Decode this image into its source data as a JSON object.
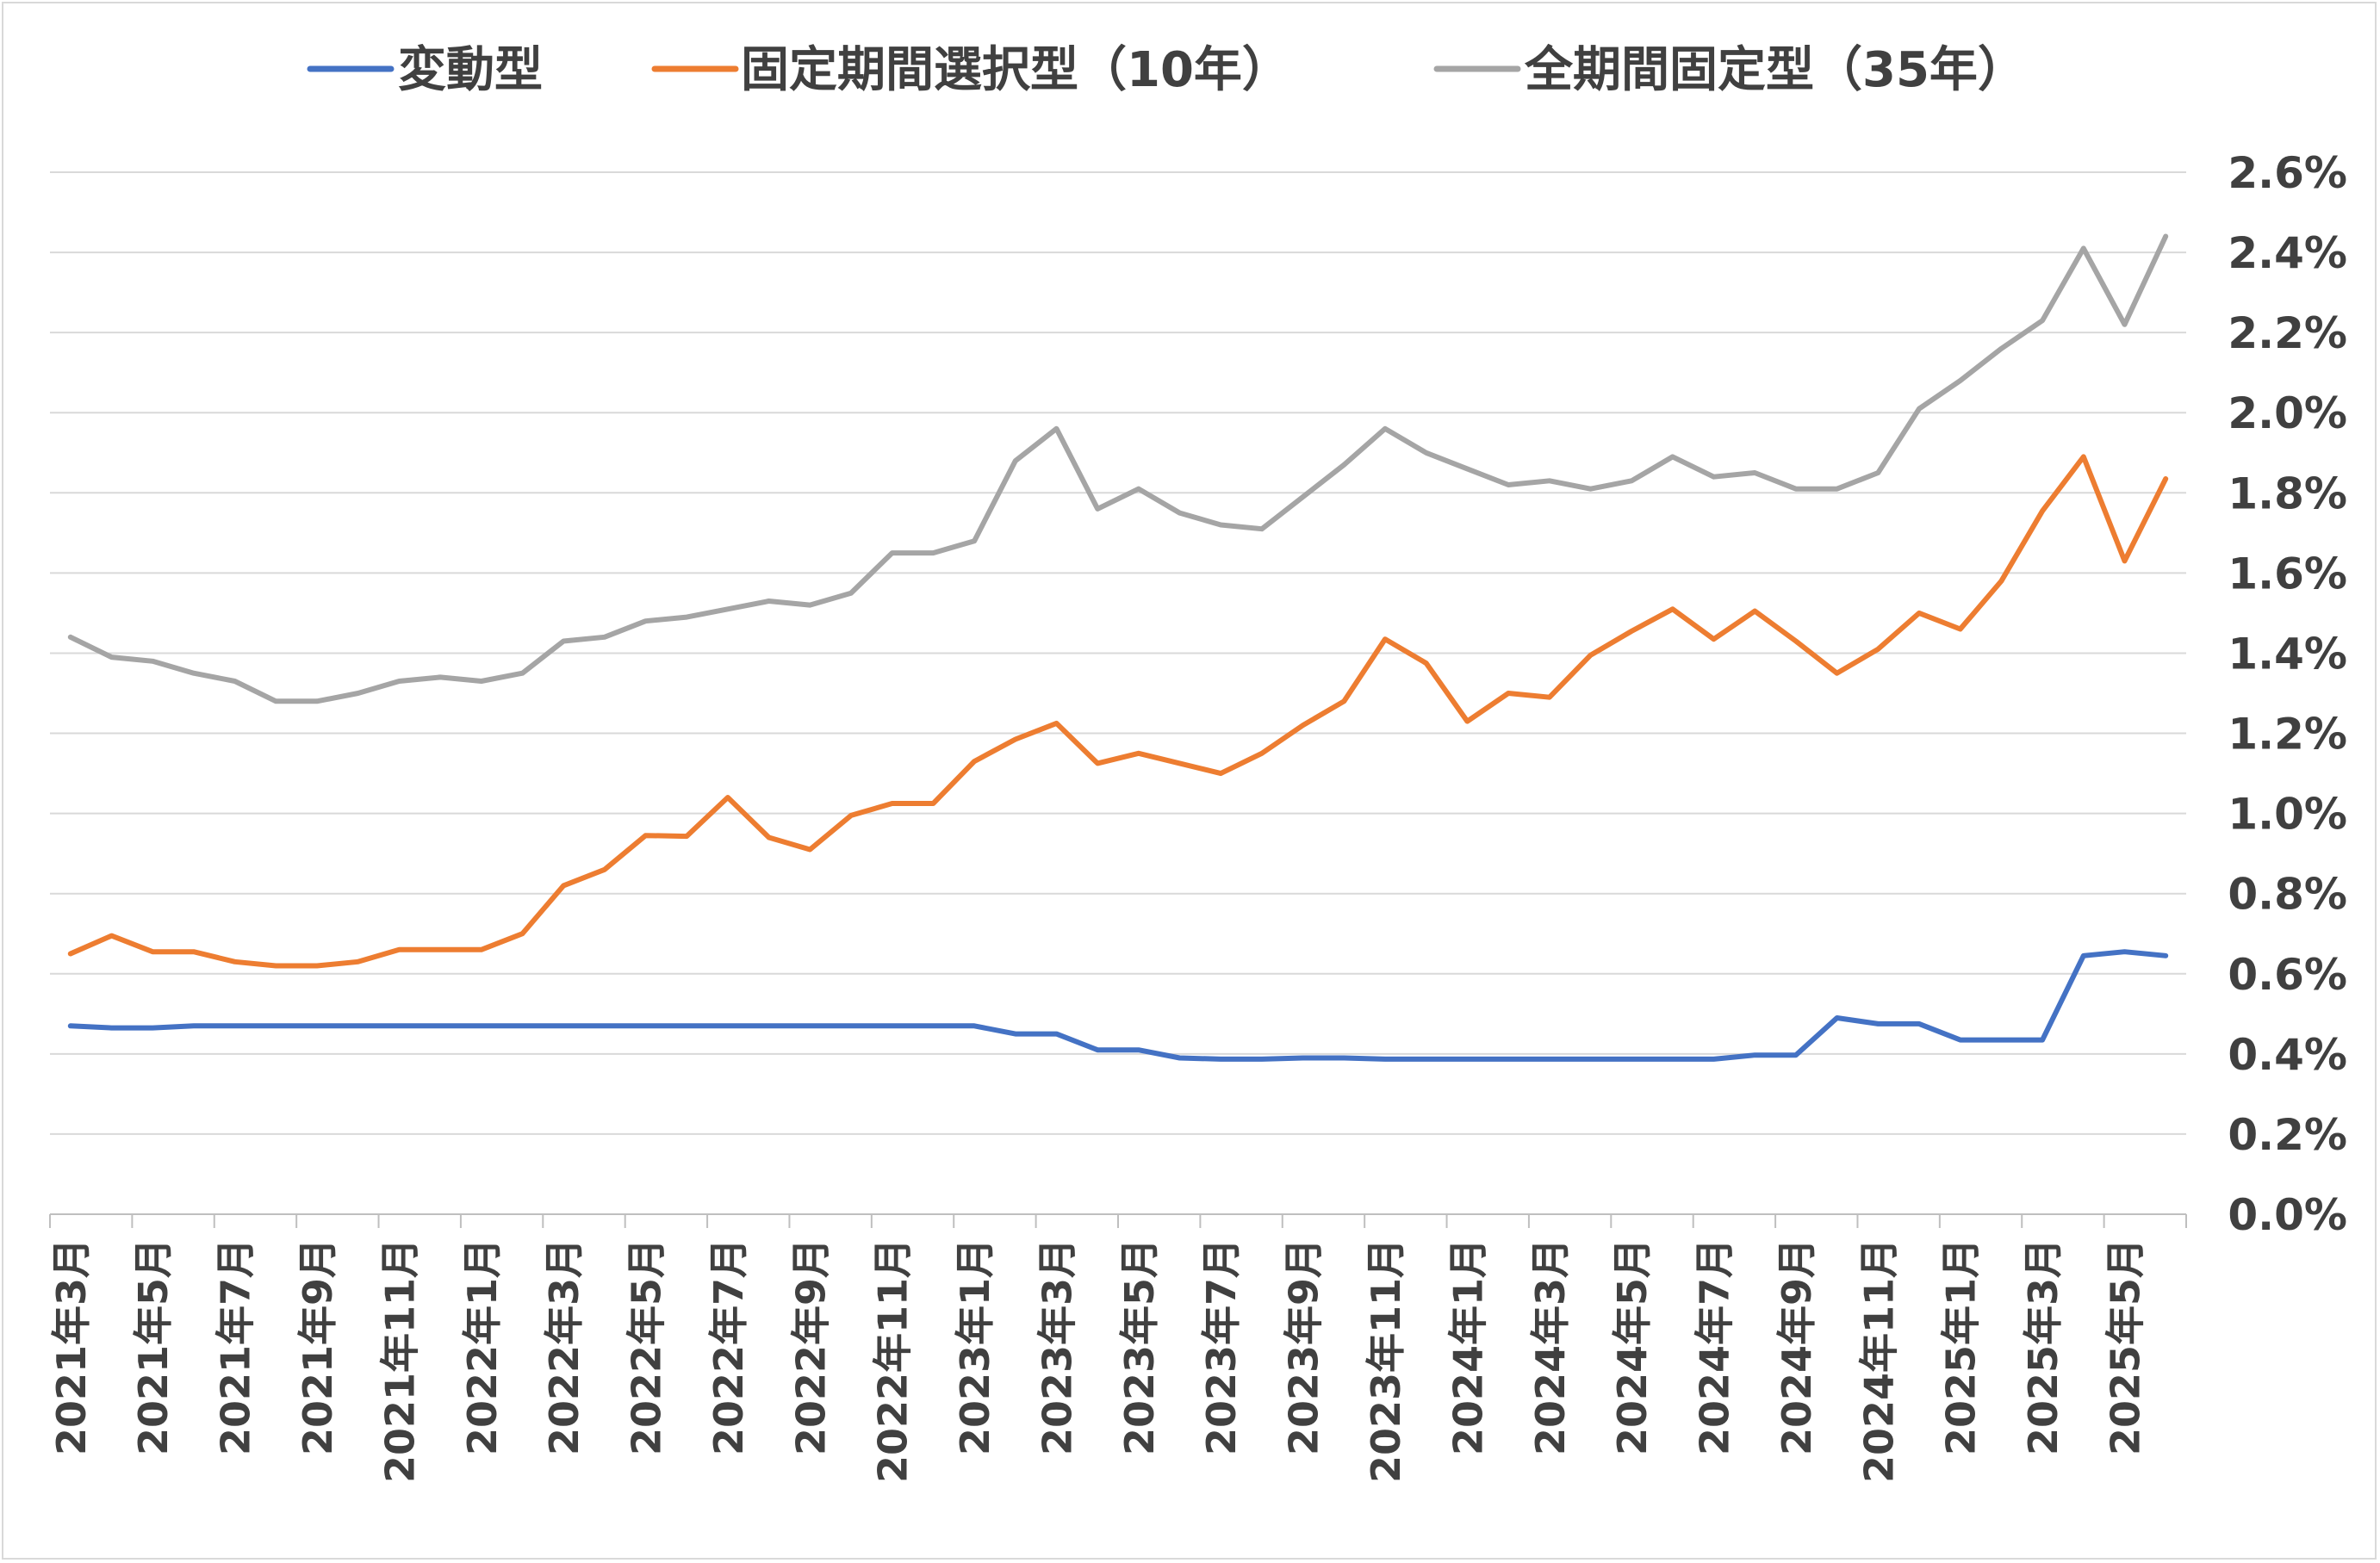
{
  "chart_data": {
    "type": "line",
    "legend_position": "top",
    "grid": true,
    "y_axis_position": "right",
    "ylim": [
      0.0,
      2.6
    ],
    "y_ticks": [
      "0.0%",
      "0.2%",
      "0.4%",
      "0.6%",
      "0.8%",
      "1.0%",
      "1.2%",
      "1.4%",
      "1.6%",
      "1.8%",
      "2.0%",
      "2.2%",
      "2.4%",
      "2.6%"
    ],
    "x_tick_labels": [
      "2021年3月",
      "2021年5月",
      "2021年7月",
      "2021年9月",
      "2021年11月",
      "2022年1月",
      "2022年3月",
      "2022年5月",
      "2022年7月",
      "2022年9月",
      "2022年11月",
      "2023年1月",
      "2023年3月",
      "2023年5月",
      "2023年7月",
      "2023年9月",
      "2023年11月",
      "2024年1月",
      "2024年3月",
      "2024年5月",
      "2024年7月",
      "2024年9月",
      "2024年11月",
      "2025年1月",
      "2025年3月",
      "2025年5月"
    ],
    "x": [
      "2021-03",
      "2021-04",
      "2021-05",
      "2021-06",
      "2021-07",
      "2021-08",
      "2021-09",
      "2021-10",
      "2021-11",
      "2021-12",
      "2022-01",
      "2022-02",
      "2022-03",
      "2022-04",
      "2022-05",
      "2022-06",
      "2022-07",
      "2022-08",
      "2022-09",
      "2022-10",
      "2022-11",
      "2022-12",
      "2023-01",
      "2023-02",
      "2023-03",
      "2023-04",
      "2023-05",
      "2023-06",
      "2023-07",
      "2023-08",
      "2023-09",
      "2023-10",
      "2023-11",
      "2023-12",
      "2024-01",
      "2024-02",
      "2024-03",
      "2024-04",
      "2024-05",
      "2024-06",
      "2024-07",
      "2024-08",
      "2024-09",
      "2024-10",
      "2024-11",
      "2024-12",
      "2025-01",
      "2025-02",
      "2025-03",
      "2025-04",
      "2025-05",
      "2025-06"
    ],
    "series": [
      {
        "name": "変動型",
        "color": "#4472c4",
        "values": [
          0.47,
          0.465,
          0.465,
          0.47,
          0.47,
          0.47,
          0.47,
          0.47,
          0.47,
          0.47,
          0.47,
          0.47,
          0.47,
          0.47,
          0.47,
          0.47,
          0.47,
          0.47,
          0.47,
          0.47,
          0.47,
          0.47,
          0.47,
          0.45,
          0.45,
          0.41,
          0.41,
          0.39,
          0.387,
          0.387,
          0.39,
          0.39,
          0.387,
          0.387,
          0.387,
          0.387,
          0.387,
          0.387,
          0.387,
          0.387,
          0.387,
          0.397,
          0.397,
          0.49,
          0.475,
          0.475,
          0.435,
          0.435,
          0.435,
          0.645,
          0.655,
          0.645
        ]
      },
      {
        "name": "固定期間選択型（10年）",
        "color": "#ed7d31",
        "values": [
          0.65,
          0.695,
          0.655,
          0.655,
          0.63,
          0.62,
          0.62,
          0.63,
          0.66,
          0.66,
          0.66,
          0.7,
          0.82,
          0.86,
          0.945,
          0.943,
          1.04,
          0.94,
          0.91,
          0.995,
          1.025,
          1.025,
          1.13,
          1.185,
          1.225,
          1.125,
          1.15,
          1.125,
          1.1,
          1.15,
          1.22,
          1.28,
          1.435,
          1.375,
          1.23,
          1.3,
          1.29,
          1.395,
          1.455,
          1.51,
          1.435,
          1.505,
          1.43,
          1.35,
          1.41,
          1.5,
          1.46,
          1.58,
          1.755,
          1.89,
          1.63,
          1.835
        ]
      },
      {
        "name": "全期間固定型（35年）",
        "color": "#a5a5a5",
        "values": [
          1.44,
          1.39,
          1.38,
          1.35,
          1.33,
          1.28,
          1.28,
          1.3,
          1.33,
          1.34,
          1.33,
          1.35,
          1.43,
          1.44,
          1.48,
          1.49,
          1.51,
          1.53,
          1.52,
          1.55,
          1.65,
          1.65,
          1.68,
          1.88,
          1.96,
          1.76,
          1.81,
          1.75,
          1.72,
          1.71,
          1.79,
          1.87,
          1.96,
          1.9,
          1.86,
          1.82,
          1.83,
          1.81,
          1.83,
          1.89,
          1.84,
          1.85,
          1.81,
          1.81,
          1.85,
          2.01,
          2.08,
          2.16,
          2.23,
          2.41,
          2.22,
          2.44
        ]
      }
    ]
  }
}
